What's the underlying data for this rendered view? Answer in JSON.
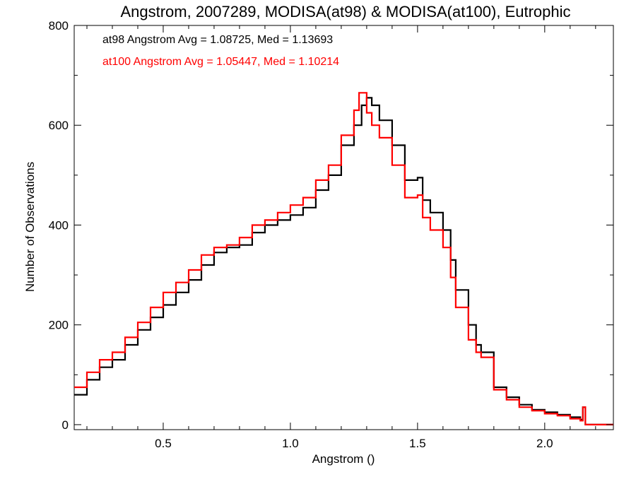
{
  "chart_data": {
    "type": "line",
    "title": "Angstrom, 2007289, MODISA(at98) & MODISA(at100), Eutrophic",
    "xlabel": "Angstrom ()",
    "ylabel": "Number of Observations",
    "xlim": [
      0.15,
      2.27
    ],
    "ylim": [
      -10,
      800
    ],
    "grid": false,
    "x_ticks": [
      0.5,
      1.0,
      1.5,
      2.0
    ],
    "x_tick_labels": [
      "0.5",
      "1.0",
      "1.5",
      "2.0"
    ],
    "y_ticks": [
      0,
      200,
      400,
      600,
      800
    ],
    "y_tick_labels": [
      "0",
      "200",
      "400",
      "600",
      "800"
    ],
    "legend_position": "top-left",
    "series": [
      {
        "name": "at98",
        "legend": "at98 Angstrom Avg = 1.08725, Med = 1.13693",
        "color": "#000000",
        "x": [
          0.15,
          0.2,
          0.25,
          0.3,
          0.35,
          0.4,
          0.45,
          0.5,
          0.55,
          0.6,
          0.65,
          0.7,
          0.75,
          0.8,
          0.85,
          0.9,
          0.95,
          1.0,
          1.05,
          1.1,
          1.15,
          1.2,
          1.25,
          1.28,
          1.3,
          1.32,
          1.35,
          1.4,
          1.45,
          1.5,
          1.52,
          1.55,
          1.6,
          1.63,
          1.65,
          1.7,
          1.73,
          1.75,
          1.8,
          1.85,
          1.9,
          1.95,
          2.0,
          2.05,
          2.1,
          2.14,
          2.15,
          2.16,
          2.2,
          2.27
        ],
        "y": [
          60,
          90,
          115,
          130,
          160,
          190,
          215,
          240,
          265,
          290,
          320,
          345,
          355,
          360,
          385,
          400,
          410,
          420,
          435,
          470,
          500,
          560,
          600,
          640,
          655,
          640,
          610,
          560,
          490,
          495,
          450,
          425,
          390,
          330,
          270,
          200,
          160,
          145,
          75,
          55,
          40,
          30,
          25,
          20,
          15,
          10,
          35,
          0,
          0,
          0
        ]
      },
      {
        "name": "at100",
        "legend": "at100 Angstrom Avg = 1.05447, Med = 1.10214",
        "color": "#ff0000",
        "x": [
          0.15,
          0.2,
          0.25,
          0.3,
          0.35,
          0.4,
          0.45,
          0.5,
          0.55,
          0.6,
          0.65,
          0.7,
          0.75,
          0.8,
          0.85,
          0.9,
          0.95,
          1.0,
          1.05,
          1.1,
          1.15,
          1.2,
          1.25,
          1.27,
          1.3,
          1.32,
          1.35,
          1.4,
          1.45,
          1.5,
          1.52,
          1.55,
          1.6,
          1.63,
          1.65,
          1.7,
          1.73,
          1.75,
          1.8,
          1.85,
          1.9,
          1.95,
          2.0,
          2.05,
          2.1,
          2.14,
          2.15,
          2.16,
          2.2,
          2.27
        ],
        "y": [
          75,
          105,
          130,
          145,
          175,
          205,
          235,
          265,
          285,
          310,
          340,
          355,
          360,
          375,
          400,
          410,
          425,
          440,
          455,
          490,
          520,
          580,
          630,
          665,
          625,
          600,
          575,
          520,
          455,
          460,
          415,
          390,
          355,
          295,
          235,
          170,
          145,
          135,
          70,
          50,
          35,
          28,
          22,
          18,
          12,
          8,
          35,
          0,
          0,
          0
        ]
      }
    ]
  }
}
